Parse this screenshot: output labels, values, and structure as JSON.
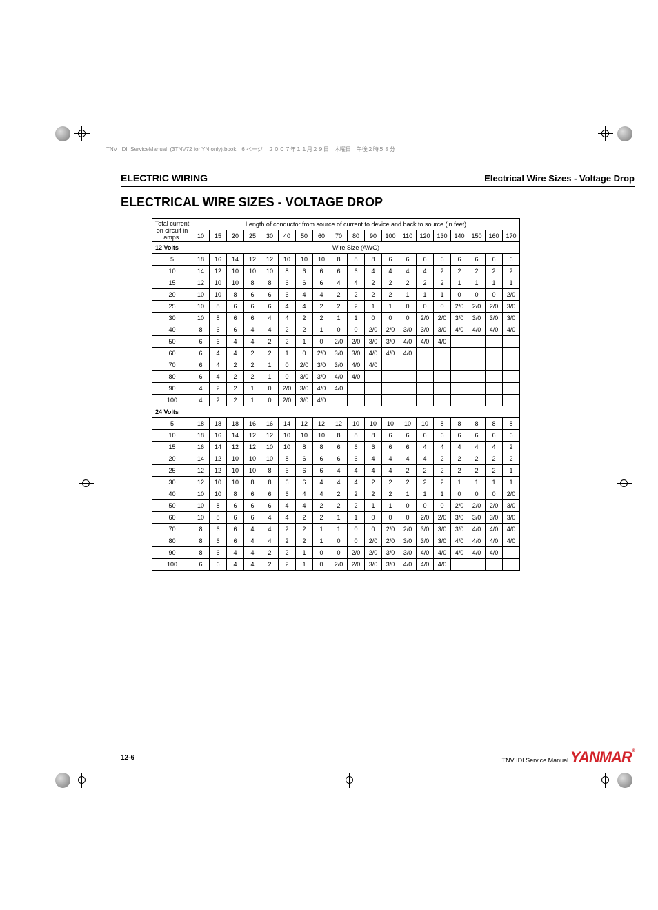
{
  "book_header": "TNV_IDI_ServiceManual_(3TNV72 for YN only).book　6 ページ　２００７年１１月２９日　木曜日　午後２時５８分",
  "section_left": "ELECTRIC WIRING",
  "section_right": "Electrical Wire Sizes - Voltage Drop",
  "title": "ELECTRICAL WIRE SIZES - VOLTAGE DROP",
  "table": {
    "corner_header": "Total current on circuit in amps.",
    "span_header": "Length of conductor from source of current to device and back to source (in feet)",
    "length_cols": [
      "10",
      "15",
      "20",
      "25",
      "30",
      "40",
      "50",
      "60",
      "70",
      "80",
      "90",
      "100",
      "110",
      "120",
      "130",
      "140",
      "150",
      "160",
      "170"
    ],
    "sub_header": "Wire Size (AWG)",
    "sections": [
      {
        "label": "12 Volts",
        "rows": [
          {
            "amp": "5",
            "cells": [
              "18",
              "16",
              "14",
              "12",
              "12",
              "10",
              "10",
              "10",
              "8",
              "8",
              "8",
              "6",
              "6",
              "6",
              "6",
              "6",
              "6",
              "6",
              "6"
            ]
          },
          {
            "amp": "10",
            "cells": [
              "14",
              "12",
              "10",
              "10",
              "10",
              "8",
              "6",
              "6",
              "6",
              "6",
              "4",
              "4",
              "4",
              "4",
              "2",
              "2",
              "2",
              "2",
              "2"
            ]
          },
          {
            "amp": "15",
            "cells": [
              "12",
              "10",
              "10",
              "8",
              "8",
              "6",
              "6",
              "6",
              "4",
              "4",
              "2",
              "2",
              "2",
              "2",
              "2",
              "1",
              "1",
              "1",
              "1"
            ]
          },
          {
            "amp": "20",
            "cells": [
              "10",
              "10",
              "8",
              "6",
              "6",
              "6",
              "4",
              "4",
              "2",
              "2",
              "2",
              "2",
              "1",
              "1",
              "1",
              "0",
              "0",
              "0",
              "2/0"
            ]
          },
          {
            "amp": "25",
            "cells": [
              "10",
              "8",
              "6",
              "6",
              "6",
              "4",
              "4",
              "2",
              "2",
              "2",
              "1",
              "1",
              "0",
              "0",
              "0",
              "2/0",
              "2/0",
              "2/0",
              "3/0"
            ]
          },
          {
            "amp": "30",
            "cells": [
              "10",
              "8",
              "6",
              "6",
              "4",
              "4",
              "2",
              "2",
              "1",
              "1",
              "0",
              "0",
              "0",
              "2/0",
              "2/0",
              "3/0",
              "3/0",
              "3/0",
              "3/0"
            ]
          },
          {
            "amp": "40",
            "cells": [
              "8",
              "6",
              "6",
              "4",
              "4",
              "2",
              "2",
              "1",
              "0",
              "0",
              "2/0",
              "2/0",
              "3/0",
              "3/0",
              "3/0",
              "4/0",
              "4/0",
              "4/0",
              "4/0"
            ]
          },
          {
            "amp": "50",
            "cells": [
              "6",
              "6",
              "4",
              "4",
              "2",
              "2",
              "1",
              "0",
              "2/0",
              "2/0",
              "3/0",
              "3/0",
              "4/0",
              "4/0",
              "4/0",
              "",
              "",
              "",
              ""
            ]
          },
          {
            "amp": "60",
            "cells": [
              "6",
              "4",
              "4",
              "2",
              "2",
              "1",
              "0",
              "2/0",
              "3/0",
              "3/0",
              "4/0",
              "4/0",
              "4/0",
              "",
              "",
              "",
              "",
              "",
              ""
            ]
          },
          {
            "amp": "70",
            "cells": [
              "6",
              "4",
              "2",
              "2",
              "1",
              "0",
              "2/0",
              "3/0",
              "3/0",
              "4/0",
              "4/0",
              "",
              "",
              "",
              "",
              "",
              "",
              "",
              ""
            ]
          },
          {
            "amp": "80",
            "cells": [
              "6",
              "4",
              "2",
              "2",
              "1",
              "0",
              "3/0",
              "3/0",
              "4/0",
              "4/0",
              "",
              "",
              "",
              "",
              "",
              "",
              "",
              "",
              ""
            ]
          },
          {
            "amp": "90",
            "cells": [
              "4",
              "2",
              "2",
              "1",
              "0",
              "2/0",
              "3/0",
              "4/0",
              "4/0",
              "",
              "",
              "",
              "",
              "",
              "",
              "",
              "",
              "",
              ""
            ]
          },
          {
            "amp": "100",
            "cells": [
              "4",
              "2",
              "2",
              "1",
              "0",
              "2/0",
              "3/0",
              "4/0",
              "",
              "",
              "",
              "",
              "",
              "",
              "",
              "",
              "",
              "",
              ""
            ]
          }
        ]
      },
      {
        "label": "24 Volts",
        "rows": [
          {
            "amp": "5",
            "cells": [
              "18",
              "18",
              "18",
              "16",
              "16",
              "14",
              "12",
              "12",
              "12",
              "10",
              "10",
              "10",
              "10",
              "10",
              "8",
              "8",
              "8",
              "8",
              "8"
            ]
          },
          {
            "amp": "10",
            "cells": [
              "18",
              "16",
              "14",
              "12",
              "12",
              "10",
              "10",
              "10",
              "8",
              "8",
              "8",
              "6",
              "6",
              "6",
              "6",
              "6",
              "6",
              "6",
              "6"
            ]
          },
          {
            "amp": "15",
            "cells": [
              "16",
              "14",
              "12",
              "12",
              "10",
              "10",
              "8",
              "8",
              "6",
              "6",
              "6",
              "6",
              "6",
              "4",
              "4",
              "4",
              "4",
              "4",
              "2"
            ]
          },
          {
            "amp": "20",
            "cells": [
              "14",
              "12",
              "10",
              "10",
              "10",
              "8",
              "6",
              "6",
              "6",
              "6",
              "4",
              "4",
              "4",
              "4",
              "2",
              "2",
              "2",
              "2",
              "2"
            ]
          },
          {
            "amp": "25",
            "cells": [
              "12",
              "12",
              "10",
              "10",
              "8",
              "6",
              "6",
              "6",
              "4",
              "4",
              "4",
              "4",
              "2",
              "2",
              "2",
              "2",
              "2",
              "2",
              "1"
            ]
          },
          {
            "amp": "30",
            "cells": [
              "12",
              "10",
              "10",
              "8",
              "8",
              "6",
              "6",
              "4",
              "4",
              "4",
              "2",
              "2",
              "2",
              "2",
              "2",
              "1",
              "1",
              "1",
              "1"
            ]
          },
          {
            "amp": "40",
            "cells": [
              "10",
              "10",
              "8",
              "6",
              "6",
              "6",
              "4",
              "4",
              "2",
              "2",
              "2",
              "2",
              "1",
              "1",
              "1",
              "0",
              "0",
              "0",
              "2/0"
            ]
          },
          {
            "amp": "50",
            "cells": [
              "10",
              "8",
              "6",
              "6",
              "6",
              "4",
              "4",
              "2",
              "2",
              "2",
              "1",
              "1",
              "0",
              "0",
              "0",
              "2/0",
              "2/0",
              "2/0",
              "3/0"
            ]
          },
          {
            "amp": "60",
            "cells": [
              "10",
              "8",
              "6",
              "6",
              "4",
              "4",
              "2",
              "2",
              "1",
              "1",
              "0",
              "0",
              "0",
              "2/0",
              "2/0",
              "3/0",
              "3/0",
              "3/0",
              "3/0"
            ]
          },
          {
            "amp": "70",
            "cells": [
              "8",
              "6",
              "6",
              "4",
              "4",
              "2",
              "2",
              "1",
              "1",
              "0",
              "0",
              "2/0",
              "2/0",
              "3/0",
              "3/0",
              "3/0",
              "4/0",
              "4/0",
              "4/0"
            ]
          },
          {
            "amp": "80",
            "cells": [
              "8",
              "6",
              "6",
              "4",
              "4",
              "2",
              "2",
              "1",
              "0",
              "0",
              "2/0",
              "2/0",
              "3/0",
              "3/0",
              "3/0",
              "4/0",
              "4/0",
              "4/0",
              "4/0"
            ]
          },
          {
            "amp": "90",
            "cells": [
              "8",
              "6",
              "4",
              "4",
              "2",
              "2",
              "1",
              "0",
              "0",
              "2/0",
              "2/0",
              "3/0",
              "3/0",
              "4/0",
              "4/0",
              "4/0",
              "4/0",
              "4/0",
              ""
            ]
          },
          {
            "amp": "100",
            "cells": [
              "6",
              "6",
              "4",
              "4",
              "2",
              "2",
              "1",
              "0",
              "2/0",
              "2/0",
              "3/0",
              "3/0",
              "4/0",
              "4/0",
              "4/0",
              "",
              "",
              "",
              ""
            ]
          }
        ]
      }
    ]
  },
  "footer": {
    "page_num": "12-6",
    "manual": "TNV IDI Service Manual",
    "brand": "YANMAR",
    "brand_sub": "®"
  },
  "colors": {
    "text": "#000000",
    "brand": "#d2232a",
    "rule": "#000000"
  }
}
